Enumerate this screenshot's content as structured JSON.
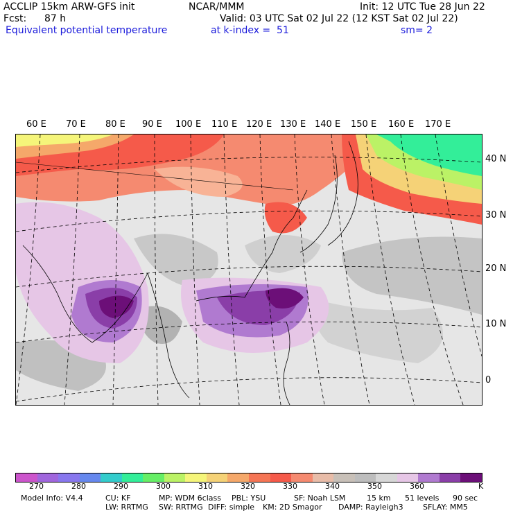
{
  "header": {
    "model": "ACCLIP 15km ARW-GFS init",
    "center": "NCAR/MMM",
    "init": "Init: 12 UTC Tue 28 Jun 22",
    "fcst_label": "Fcst:",
    "fcst_value": "87 h",
    "valid": "Valid: 03 UTC Sat 02 Jul 22 (12 KST Sat 02 Jul 22)",
    "field": "Equivalent potential temperature",
    "level": "at k-index =  51",
    "smooth": "sm= 2"
  },
  "map": {
    "lon_labels": [
      "60 E",
      "70 E",
      "80 E",
      "90 E",
      "100 E",
      "110 E",
      "120 E",
      "130 E",
      "140 E",
      "150 E",
      "160 E",
      "170 E"
    ],
    "lat_labels": [
      "40 N",
      "30 N",
      "20 N",
      "10 N",
      "0"
    ]
  },
  "colorbar": {
    "colors": [
      "#cc55cc",
      "#a066dd",
      "#8877ee",
      "#6688ee",
      "#33cccc",
      "#33ee99",
      "#66ee66",
      "#bbf266",
      "#f5f57a",
      "#f5d277",
      "#f5a86a",
      "#f57555",
      "#f55a4a",
      "#f58a70",
      "#e8bca8",
      "#c8c0b8",
      "#bdbdbd",
      "#d7d7d7",
      "#e6c6e6",
      "#b07ad0",
      "#8a3ea8",
      "#6c0f78"
    ],
    "labels": [
      "270",
      "280",
      "290",
      "300",
      "310",
      "320",
      "330",
      "340",
      "350",
      "360",
      "K"
    ]
  },
  "footer": {
    "line1": [
      "Model Info: V4.4",
      "CU: KF",
      "MP: WDM 6class",
      "PBL: YSU",
      "SF: Noah LSM",
      "15 km",
      "51 levels",
      "90 sec"
    ],
    "line2": [
      "LW: RRTMG",
      "SW: RRTMG",
      "DIFF: simple",
      "KM: 2D Smagor",
      "DAMP: Rayleigh3",
      "SFLAY: MM5"
    ]
  }
}
